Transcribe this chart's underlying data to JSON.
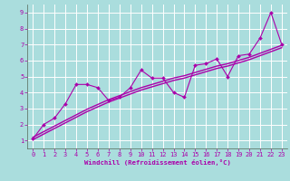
{
  "x": [
    0,
    1,
    2,
    3,
    4,
    5,
    6,
    7,
    8,
    9,
    10,
    11,
    12,
    13,
    14,
    15,
    16,
    17,
    18,
    19,
    20,
    21,
    22,
    23
  ],
  "y_scatter": [
    1.1,
    2.0,
    2.4,
    3.3,
    4.5,
    4.5,
    4.3,
    3.5,
    3.7,
    4.3,
    5.4,
    4.9,
    4.9,
    4.0,
    3.7,
    5.7,
    5.8,
    6.1,
    5.0,
    6.3,
    6.4,
    7.4,
    9.0,
    7.0
  ],
  "y_line1": [
    1.05,
    1.4,
    1.75,
    2.1,
    2.45,
    2.8,
    3.1,
    3.4,
    3.65,
    3.9,
    4.15,
    4.35,
    4.55,
    4.75,
    4.9,
    5.1,
    5.3,
    5.5,
    5.65,
    5.85,
    6.05,
    6.3,
    6.55,
    6.8
  ],
  "y_line2": [
    1.2,
    1.55,
    1.9,
    2.25,
    2.6,
    2.95,
    3.25,
    3.55,
    3.8,
    4.05,
    4.3,
    4.5,
    4.7,
    4.9,
    5.05,
    5.25,
    5.45,
    5.65,
    5.8,
    6.0,
    6.2,
    6.45,
    6.7,
    6.95
  ],
  "line_color": "#aa00aa",
  "bg_color": "#aadddd",
  "grid_color": "#cceeee",
  "xlabel": "Windchill (Refroidissement éolien,°C)",
  "xlim": [
    -0.5,
    23.5
  ],
  "ylim": [
    0.5,
    9.5
  ],
  "xticks": [
    0,
    1,
    2,
    3,
    4,
    5,
    6,
    7,
    8,
    9,
    10,
    11,
    12,
    13,
    14,
    15,
    16,
    17,
    18,
    19,
    20,
    21,
    22,
    23
  ],
  "yticks": [
    1,
    2,
    3,
    4,
    5,
    6,
    7,
    8,
    9
  ]
}
